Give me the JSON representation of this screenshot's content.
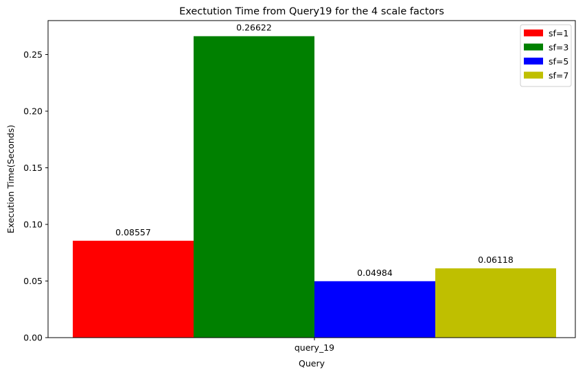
{
  "chart_data": {
    "type": "bar",
    "title": "Exectution Time from Query19 for the 4 scale factors",
    "xlabel": "Query",
    "ylabel": "Execution Time(Seconds)",
    "categories": [
      "query_19"
    ],
    "series": [
      {
        "name": "sf=1",
        "color": "#ff0000",
        "values": [
          0.08557
        ],
        "label": "0.08557"
      },
      {
        "name": "sf=3",
        "color": "#008000",
        "values": [
          0.26622
        ],
        "label": "0.26622"
      },
      {
        "name": "sf=5",
        "color": "#0000ff",
        "values": [
          0.04984
        ],
        "label": "0.04984"
      },
      {
        "name": "sf=7",
        "color": "#bfbf00",
        "values": [
          0.06118
        ],
        "label": "0.06118"
      }
    ],
    "yticks": [
      "0.00",
      "0.05",
      "0.10",
      "0.15",
      "0.20",
      "0.25"
    ],
    "ylim": [
      0,
      0.28
    ],
    "grid": false,
    "legend_position": "top-right"
  }
}
